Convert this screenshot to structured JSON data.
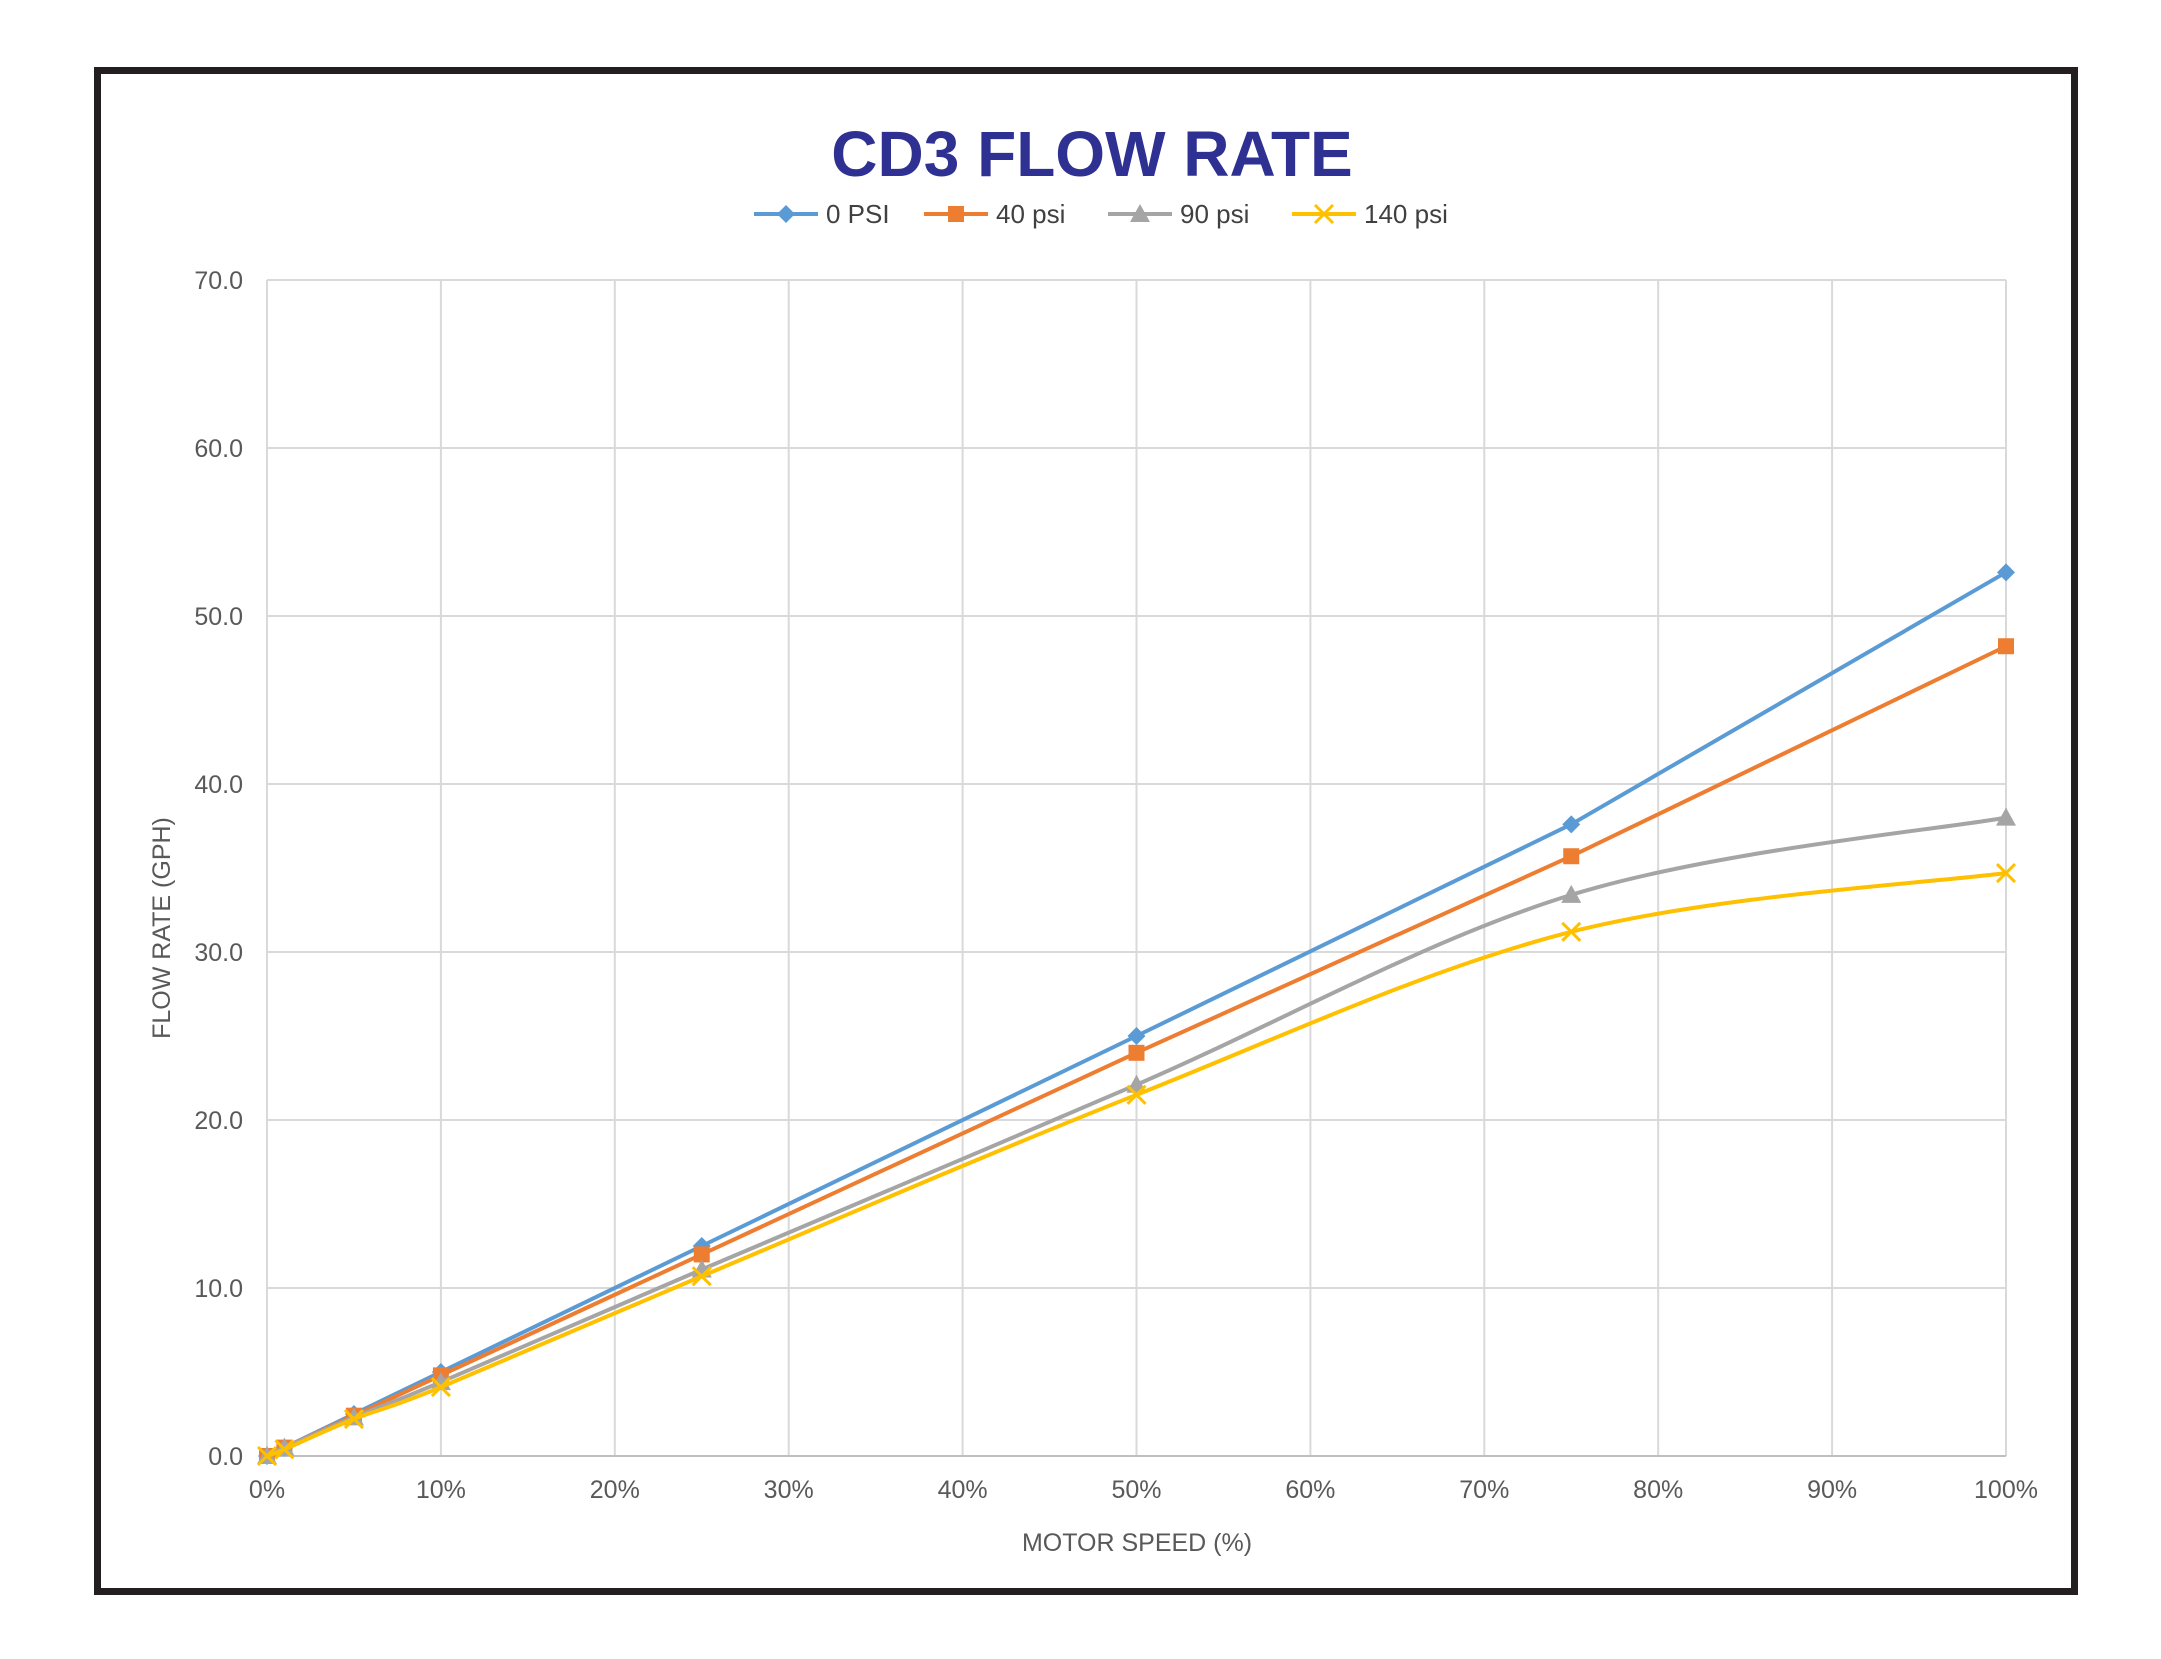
{
  "chart_data": {
    "type": "line",
    "title": "CD3 FLOW RATE",
    "xlabel": "MOTOR SPEED (%)",
    "ylabel": "FLOW RATE (GPH)",
    "xlim": [
      0,
      100
    ],
    "ylim": [
      0,
      70
    ],
    "x_ticks": [
      "0%",
      "10%",
      "20%",
      "30%",
      "40%",
      "50%",
      "60%",
      "70%",
      "80%",
      "90%",
      "100%"
    ],
    "y_ticks": [
      "0.0",
      "10.0",
      "20.0",
      "30.0",
      "40.0",
      "50.0",
      "60.0",
      "70.0"
    ],
    "grid": true,
    "legend_position": "top-center",
    "title_color": "#2e3192",
    "series": [
      {
        "name": "0 PSI",
        "color": "#5b9bd5",
        "marker": "diamond",
        "smooth": false,
        "x": [
          0,
          1,
          5,
          10,
          25,
          50,
          75,
          100
        ],
        "y": [
          0.0,
          0.5,
          2.5,
          5.0,
          12.5,
          25.0,
          37.6,
          52.6
        ]
      },
      {
        "name": "40 psi",
        "color": "#ed7d31",
        "marker": "square",
        "smooth": false,
        "x": [
          0,
          1,
          5,
          10,
          25,
          50,
          75,
          100
        ],
        "y": [
          0.0,
          0.5,
          2.4,
          4.8,
          12.0,
          24.0,
          35.7,
          48.2
        ]
      },
      {
        "name": "90 psi",
        "color": "#a5a5a5",
        "marker": "triangle",
        "smooth": true,
        "x": [
          0,
          1,
          5,
          10,
          25,
          50,
          75,
          100
        ],
        "y": [
          0.0,
          0.5,
          2.3,
          4.4,
          11.1,
          22.1,
          33.4,
          38.0
        ]
      },
      {
        "name": "140 psi",
        "color": "#ffc000",
        "marker": "x",
        "smooth": true,
        "x": [
          0,
          1,
          5,
          10,
          25,
          50,
          75,
          100
        ],
        "y": [
          0.0,
          0.4,
          2.2,
          4.1,
          10.7,
          21.5,
          31.2,
          34.7
        ]
      }
    ]
  }
}
